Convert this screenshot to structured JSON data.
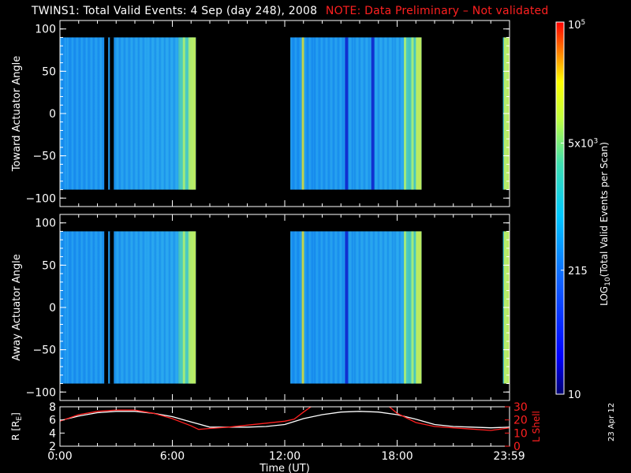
{
  "title": {
    "main": "TWINS1: Total Valid Events:  4 Sep (day 248), 2008",
    "note": "NOTE: Data Preliminary – Not validated",
    "note_color": "#ff2020"
  },
  "date_stamp": "23 Apr 12",
  "chart_data": [
    {
      "type": "heatmap",
      "name": "toward",
      "ylabel": "Toward Actuator Angle",
      "ylim": [
        -110,
        110
      ],
      "yticks": [
        100,
        50,
        0,
        -50,
        -100
      ],
      "xlim": [
        0,
        24
      ],
      "data_y_range": [
        -90,
        90
      ],
      "segments_hours": [
        [
          0,
          7.25
        ],
        [
          12.3,
          19.3
        ],
        [
          23.65,
          24
        ]
      ],
      "dark_stripes_hours": [
        2.45,
        2.75,
        15.3,
        16.7
      ],
      "bright_stripes_hours": [
        6.6,
        6.9,
        7.05,
        12.95,
        18.4,
        18.8,
        23.8
      ]
    },
    {
      "type": "heatmap",
      "name": "away",
      "ylabel": "Away Actuator Angle",
      "ylim": [
        -110,
        110
      ],
      "yticks": [
        100,
        50,
        0,
        -50,
        -100
      ],
      "xlim": [
        0,
        24
      ],
      "data_y_range": [
        -90,
        90
      ],
      "segments_hours": [
        [
          0,
          7.25
        ],
        [
          12.3,
          19.3
        ],
        [
          23.65,
          24
        ]
      ],
      "dark_stripes_hours": [
        2.45,
        2.75,
        15.3
      ],
      "bright_stripes_hours": [
        6.6,
        6.9,
        7.05,
        12.95,
        18.4,
        18.8,
        23.8
      ]
    },
    {
      "type": "line",
      "name": "orbit",
      "ylabel_left": "R [R",
      "ylabel_left_sub": "E",
      "ylabel_left_end": "]",
      "ylabel_right": "L Shell",
      "ylim_left": [
        2,
        8
      ],
      "yticks_left": [
        2,
        4,
        6,
        8
      ],
      "ylim_right": [
        0,
        30
      ],
      "yticks_right": [
        0,
        10,
        20,
        30
      ],
      "xlabel": "Time (UT)",
      "xticks": [
        "0:00",
        "6:00",
        "12:00",
        "18:00",
        "23:59"
      ],
      "xtick_hours": [
        0,
        6,
        12,
        18,
        23.98
      ],
      "series": [
        {
          "axis": "left",
          "color": "#ffffff",
          "x": [
            0,
            1,
            2,
            3,
            4,
            5,
            6,
            7,
            8,
            9,
            10,
            11,
            12,
            13,
            14,
            15,
            16,
            17,
            18,
            19,
            20,
            21,
            22,
            23,
            24
          ],
          "y": [
            5.9,
            6.6,
            7.1,
            7.3,
            7.3,
            7.0,
            6.5,
            5.7,
            4.9,
            4.9,
            4.9,
            5.0,
            5.3,
            6.2,
            6.8,
            7.2,
            7.3,
            7.2,
            6.8,
            6.1,
            5.3,
            5.0,
            4.9,
            4.8,
            4.9
          ]
        },
        {
          "axis": "right",
          "color": "#ff2020",
          "x": [
            0,
            1,
            2,
            3,
            4,
            5,
            6,
            7,
            7.4,
            8,
            9,
            10,
            11,
            12,
            12.5,
            13,
            13.5,
            17.5,
            18,
            19,
            20,
            21,
            22,
            23,
            24
          ],
          "y": [
            19,
            24,
            26.5,
            27.5,
            27.5,
            25,
            21,
            15.5,
            12.8,
            13.5,
            14.5,
            16,
            17.5,
            19,
            20.5,
            26,
            31,
            31,
            25,
            18,
            15,
            14,
            13,
            12,
            14
          ]
        }
      ]
    }
  ],
  "colorbar": {
    "label_main": "LOG",
    "label_sub": "10",
    "label_rest": "(Total Valid Events per Scan)",
    "ticks": [
      {
        "text": "10",
        "value": 10
      },
      {
        "text": "215",
        "value": 215
      },
      {
        "text": "5x10",
        "exp": "3",
        "value": 5000
      },
      {
        "text": "10",
        "exp": "5",
        "value": 100000
      }
    ],
    "vmin": 10,
    "vmax": 100000
  }
}
